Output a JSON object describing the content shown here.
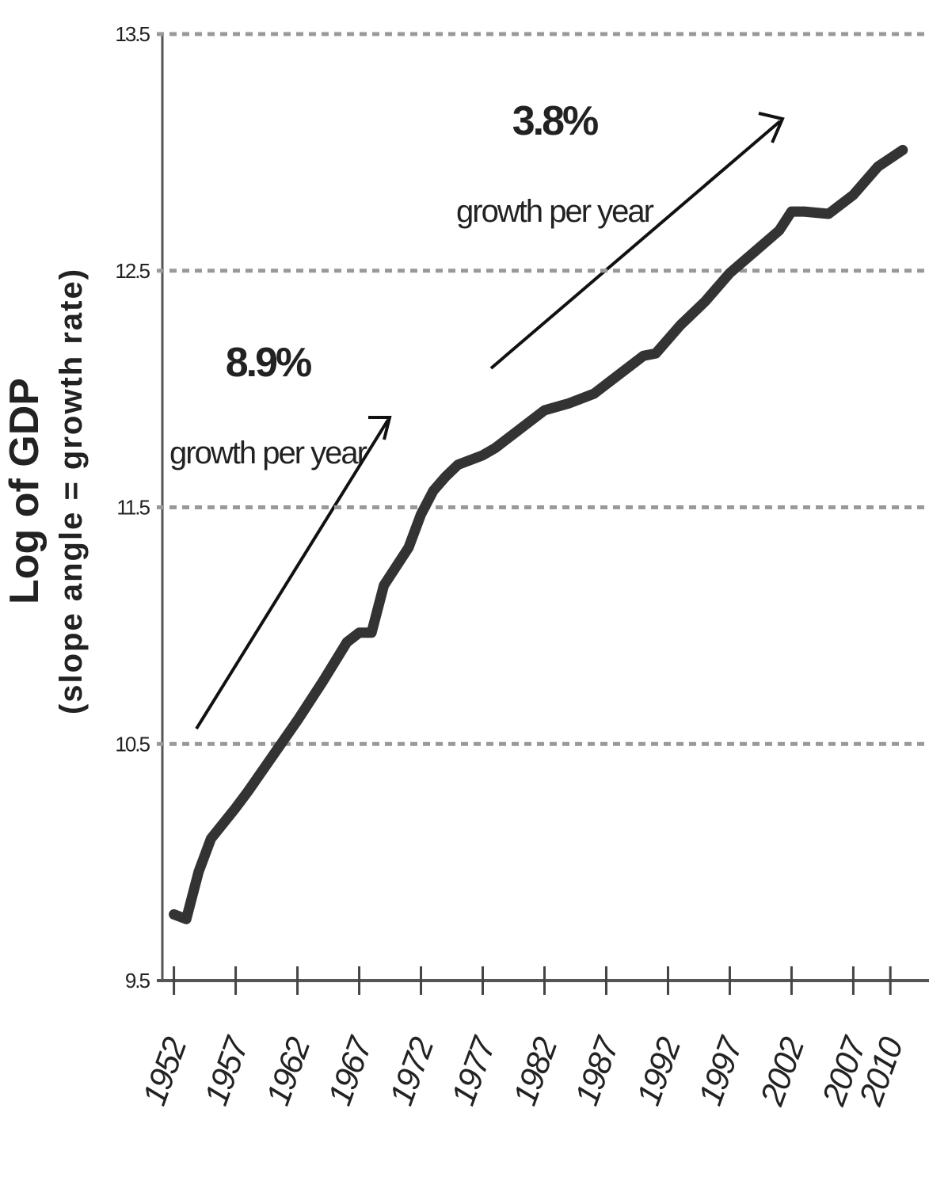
{
  "chart_data": {
    "type": "line",
    "ylabel": "Log of GDP",
    "ylabel_sub": "(slope angle = growth rate)",
    "annotations": [
      "8.9%",
      "growth per year",
      "3.8%",
      "growth per year"
    ],
    "x": [
      1952,
      1953,
      1954,
      1955,
      1957,
      1958,
      1960,
      1962,
      1964,
      1966,
      1967,
      1968,
      1969,
      1971,
      1972,
      1973,
      1974,
      1975,
      1977,
      1978,
      1980,
      1982,
      1984,
      1986,
      1988,
      1990,
      1991,
      1993,
      1995,
      1997,
      1999,
      2001,
      2002,
      2003,
      2005,
      2007,
      2009,
      2011
    ],
    "values": [
      9.78,
      9.76,
      9.96,
      10.1,
      10.23,
      10.3,
      10.45,
      10.6,
      10.76,
      10.93,
      10.97,
      10.97,
      11.17,
      11.33,
      11.47,
      11.57,
      11.63,
      11.68,
      11.72,
      11.75,
      11.83,
      11.91,
      11.94,
      11.98,
      12.06,
      12.14,
      12.15,
      12.27,
      12.37,
      12.49,
      12.58,
      12.67,
      12.75,
      12.75,
      12.74,
      12.82,
      12.94,
      13.01
    ],
    "color": "#333333",
    "xlim": [
      1951,
      2013
    ],
    "xticks": [
      1952,
      1957,
      1962,
      1967,
      1972,
      1977,
      1982,
      1987,
      1992,
      1997,
      2002,
      2007,
      2010
    ],
    "ylim": [
      9.5,
      13.5
    ],
    "yticks": [
      9.5,
      10.5,
      11.5,
      12.5,
      13.5
    ],
    "grid": true
  }
}
